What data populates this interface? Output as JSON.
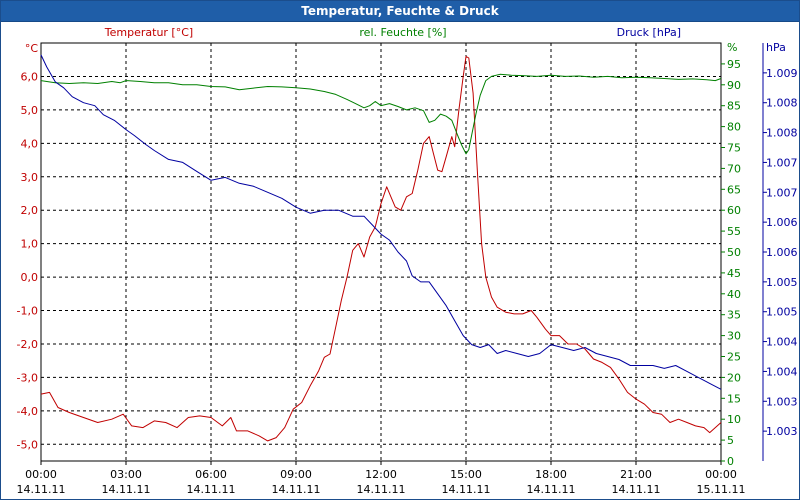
{
  "window": {
    "title": "Temperatur, Feuchte & Druck"
  },
  "colors": {
    "temperature": "#c00000",
    "humidity": "#008000",
    "pressure": "#0000a0",
    "grid": "#000000"
  },
  "chart_data": {
    "type": "line",
    "title": "Temperatur, Feuchte & Druck",
    "grid": true,
    "x_range": [
      0,
      24
    ],
    "x_ticks": [
      {
        "v": 0,
        "time": "00:00",
        "date": "14.11.11"
      },
      {
        "v": 3,
        "time": "03:00",
        "date": "14.11.11"
      },
      {
        "v": 6,
        "time": "06:00",
        "date": "14.11.11"
      },
      {
        "v": 9,
        "time": "09:00",
        "date": "14.11.11"
      },
      {
        "v": 12,
        "time": "12:00",
        "date": "14.11.11"
      },
      {
        "v": 15,
        "time": "15:00",
        "date": "14.11.11"
      },
      {
        "v": 18,
        "time": "18:00",
        "date": "14.11.11"
      },
      {
        "v": 21,
        "time": "21:00",
        "date": "14.11.11"
      },
      {
        "v": 24,
        "time": "00:00",
        "date": "15.11.11"
      }
    ],
    "axes": {
      "temperature": {
        "label": "Temperatur [°C]",
        "unit": "°C",
        "range": [
          -5.5,
          7.0
        ],
        "ticks": [
          {
            "v": 6,
            "t": "6,0"
          },
          {
            "v": 5,
            "t": "5,0"
          },
          {
            "v": 4,
            "t": "4,0"
          },
          {
            "v": 3,
            "t": "3,0"
          },
          {
            "v": 2,
            "t": "2,0"
          },
          {
            "v": 1,
            "t": "1,0"
          },
          {
            "v": 0,
            "t": "0,0"
          },
          {
            "v": -1,
            "t": "-1,0"
          },
          {
            "v": -2,
            "t": "-2,0"
          },
          {
            "v": -3,
            "t": "-3,0"
          },
          {
            "v": -4,
            "t": "-4,0"
          },
          {
            "v": -5,
            "t": "-5,0"
          }
        ]
      },
      "humidity": {
        "label": "rel. Feuchte [%]",
        "unit": "%",
        "range": [
          0,
          100
        ],
        "ticks": [
          {
            "v": 95,
            "t": "95"
          },
          {
            "v": 90,
            "t": "90"
          },
          {
            "v": 85,
            "t": "85"
          },
          {
            "v": 80,
            "t": "80"
          },
          {
            "v": 75,
            "t": "75"
          },
          {
            "v": 70,
            "t": "70"
          },
          {
            "v": 65,
            "t": "65"
          },
          {
            "v": 60,
            "t": "60"
          },
          {
            "v": 55,
            "t": "55"
          },
          {
            "v": 50,
            "t": "50"
          },
          {
            "v": 45,
            "t": "45"
          },
          {
            "v": 40,
            "t": "40"
          },
          {
            "v": 35,
            "t": "35"
          },
          {
            "v": 30,
            "t": "30"
          },
          {
            "v": 25,
            "t": "25"
          },
          {
            "v": 20,
            "t": "20"
          },
          {
            "v": 15,
            "t": "15"
          },
          {
            "v": 10,
            "t": "10"
          },
          {
            "v": 5,
            "t": "5"
          },
          {
            "v": 0,
            "t": "0"
          }
        ]
      },
      "pressure": {
        "label": "Druck [hPa]",
        "unit": "hPa",
        "range": [
          1002.5,
          1009.5
        ],
        "ticks": [
          {
            "v": 1009,
            "t": "1.009"
          },
          {
            "v": 1008.5,
            "t": "1.008"
          },
          {
            "v": 1008,
            "t": "1.008"
          },
          {
            "v": 1007.5,
            "t": "1.007"
          },
          {
            "v": 1007,
            "t": "1.007"
          },
          {
            "v": 1006.5,
            "t": "1.006"
          },
          {
            "v": 1006,
            "t": "1.006"
          },
          {
            "v": 1005.5,
            "t": "1.005"
          },
          {
            "v": 1005,
            "t": "1.005"
          },
          {
            "v": 1004.5,
            "t": "1.004"
          },
          {
            "v": 1004,
            "t": "1.004"
          },
          {
            "v": 1003.5,
            "t": "1.003"
          },
          {
            "v": 1003,
            "t": "1.003"
          }
        ]
      }
    },
    "series": [
      {
        "name": "Temperatur [°C]",
        "axis": "temperature",
        "points": [
          [
            0,
            -3.5
          ],
          [
            0.3,
            -3.45
          ],
          [
            0.6,
            -3.9
          ],
          [
            1,
            -4.05
          ],
          [
            1.5,
            -4.2
          ],
          [
            2,
            -4.35
          ],
          [
            2.5,
            -4.25
          ],
          [
            2.9,
            -4.1
          ],
          [
            3.2,
            -4.45
          ],
          [
            3.6,
            -4.5
          ],
          [
            4,
            -4.3
          ],
          [
            4.4,
            -4.35
          ],
          [
            4.8,
            -4.5
          ],
          [
            5.2,
            -4.2
          ],
          [
            5.6,
            -4.15
          ],
          [
            6,
            -4.2
          ],
          [
            6.4,
            -4.45
          ],
          [
            6.7,
            -4.2
          ],
          [
            6.9,
            -4.6
          ],
          [
            7.3,
            -4.6
          ],
          [
            7.7,
            -4.75
          ],
          [
            8,
            -4.9
          ],
          [
            8.3,
            -4.8
          ],
          [
            8.6,
            -4.5
          ],
          [
            8.9,
            -3.95
          ],
          [
            9.2,
            -3.75
          ],
          [
            9.5,
            -3.25
          ],
          [
            9.8,
            -2.8
          ],
          [
            10.0,
            -2.4
          ],
          [
            10.2,
            -2.3
          ],
          [
            10.4,
            -1.5
          ],
          [
            10.6,
            -0.7
          ],
          [
            10.8,
            0.0
          ],
          [
            11.0,
            0.8
          ],
          [
            11.2,
            1.0
          ],
          [
            11.4,
            0.6
          ],
          [
            11.6,
            1.2
          ],
          [
            11.8,
            1.5
          ],
          [
            12.0,
            2.2
          ],
          [
            12.2,
            2.7
          ],
          [
            12.35,
            2.4
          ],
          [
            12.5,
            2.1
          ],
          [
            12.7,
            2.0
          ],
          [
            12.9,
            2.4
          ],
          [
            13.1,
            2.5
          ],
          [
            13.3,
            3.2
          ],
          [
            13.5,
            4.0
          ],
          [
            13.7,
            4.2
          ],
          [
            13.85,
            3.7
          ],
          [
            14.0,
            3.2
          ],
          [
            14.15,
            3.15
          ],
          [
            14.3,
            3.6
          ],
          [
            14.5,
            4.2
          ],
          [
            14.6,
            3.9
          ],
          [
            14.75,
            5.0
          ],
          [
            14.9,
            6.0
          ],
          [
            15.0,
            6.6
          ],
          [
            15.1,
            6.55
          ],
          [
            15.25,
            5.5
          ],
          [
            15.4,
            3.2
          ],
          [
            15.55,
            1.0
          ],
          [
            15.7,
            0.0
          ],
          [
            15.9,
            -0.6
          ],
          [
            16.1,
            -0.9
          ],
          [
            16.4,
            -1.05
          ],
          [
            16.7,
            -1.1
          ],
          [
            17.0,
            -1.1
          ],
          [
            17.3,
            -1.0
          ],
          [
            17.5,
            -1.2
          ],
          [
            17.8,
            -1.55
          ],
          [
            18.0,
            -1.75
          ],
          [
            18.3,
            -1.75
          ],
          [
            18.6,
            -2.0
          ],
          [
            18.9,
            -2.0
          ],
          [
            19.2,
            -2.15
          ],
          [
            19.5,
            -2.45
          ],
          [
            19.8,
            -2.55
          ],
          [
            20.1,
            -2.7
          ],
          [
            20.4,
            -3.05
          ],
          [
            20.7,
            -3.45
          ],
          [
            21.0,
            -3.65
          ],
          [
            21.3,
            -3.8
          ],
          [
            21.6,
            -4.05
          ],
          [
            21.9,
            -4.1
          ],
          [
            22.2,
            -4.35
          ],
          [
            22.5,
            -4.25
          ],
          [
            22.8,
            -4.35
          ],
          [
            23.1,
            -4.45
          ],
          [
            23.4,
            -4.5
          ],
          [
            23.6,
            -4.65
          ],
          [
            23.8,
            -4.5
          ],
          [
            24.0,
            -4.35
          ]
        ]
      },
      {
        "name": "rel. Feuchte [%]",
        "axis": "humidity",
        "points": [
          [
            0,
            91
          ],
          [
            0.5,
            90.5
          ],
          [
            1,
            90.3
          ],
          [
            1.5,
            90.5
          ],
          [
            2,
            90.3
          ],
          [
            2.5,
            90.8
          ],
          [
            2.8,
            90.5
          ],
          [
            3,
            91
          ],
          [
            3.5,
            90.8
          ],
          [
            4,
            90.5
          ],
          [
            4.5,
            90.5
          ],
          [
            5,
            90
          ],
          [
            5.5,
            90
          ],
          [
            6,
            89.6
          ],
          [
            6.5,
            89.5
          ],
          [
            7,
            88.8
          ],
          [
            7.5,
            89.2
          ],
          [
            8,
            89.6
          ],
          [
            8.5,
            89.5
          ],
          [
            9,
            89.3
          ],
          [
            9.5,
            89.0
          ],
          [
            10,
            88.4
          ],
          [
            10.4,
            87.7
          ],
          [
            10.8,
            86.5
          ],
          [
            11.1,
            85.5
          ],
          [
            11.4,
            84.5
          ],
          [
            11.6,
            85.0
          ],
          [
            11.8,
            86.0
          ],
          [
            12.0,
            85.0
          ],
          [
            12.3,
            85.5
          ],
          [
            12.6,
            84.8
          ],
          [
            12.9,
            84.0
          ],
          [
            13.2,
            84.5
          ],
          [
            13.5,
            83.8
          ],
          [
            13.7,
            81.0
          ],
          [
            13.9,
            81.5
          ],
          [
            14.1,
            83.0
          ],
          [
            14.3,
            82.5
          ],
          [
            14.5,
            81.5
          ],
          [
            14.7,
            78.0
          ],
          [
            14.85,
            75.5
          ],
          [
            15.0,
            73.5
          ],
          [
            15.1,
            74.5
          ],
          [
            15.2,
            78.0
          ],
          [
            15.35,
            83.0
          ],
          [
            15.5,
            87.5
          ],
          [
            15.7,
            91.0
          ],
          [
            15.9,
            92.0
          ],
          [
            16.2,
            92.5
          ],
          [
            16.6,
            92.3
          ],
          [
            17,
            92.2
          ],
          [
            17.5,
            92.0
          ],
          [
            18,
            92.3
          ],
          [
            18.5,
            92.0
          ],
          [
            19,
            92.1
          ],
          [
            19.5,
            91.8
          ],
          [
            20,
            92.0
          ],
          [
            20.5,
            91.7
          ],
          [
            21,
            91.8
          ],
          [
            21.5,
            91.7
          ],
          [
            22,
            91.5
          ],
          [
            22.5,
            91.3
          ],
          [
            23,
            91.4
          ],
          [
            23.5,
            91.2
          ],
          [
            23.8,
            91.0
          ],
          [
            24,
            91.5
          ]
        ]
      },
      {
        "name": "Druck [hPa]",
        "axis": "pressure",
        "points": [
          [
            0,
            1009.3
          ],
          [
            0.2,
            1009.1
          ],
          [
            0.5,
            1008.85
          ],
          [
            0.8,
            1008.75
          ],
          [
            1.1,
            1008.6
          ],
          [
            1.5,
            1008.5
          ],
          [
            1.9,
            1008.45
          ],
          [
            2.2,
            1008.3
          ],
          [
            2.6,
            1008.2
          ],
          [
            3.0,
            1008.05
          ],
          [
            3.3,
            1007.95
          ],
          [
            3.7,
            1007.8
          ],
          [
            4.0,
            1007.7
          ],
          [
            4.5,
            1007.55
          ],
          [
            5.0,
            1007.5
          ],
          [
            5.5,
            1007.35
          ],
          [
            6.0,
            1007.2
          ],
          [
            6.5,
            1007.25
          ],
          [
            7.0,
            1007.15
          ],
          [
            7.5,
            1007.1
          ],
          [
            8.0,
            1007.0
          ],
          [
            8.5,
            1006.9
          ],
          [
            9.0,
            1006.75
          ],
          [
            9.5,
            1006.65
          ],
          [
            10.0,
            1006.7
          ],
          [
            10.5,
            1006.7
          ],
          [
            11.0,
            1006.6
          ],
          [
            11.4,
            1006.6
          ],
          [
            11.7,
            1006.45
          ],
          [
            12.0,
            1006.3
          ],
          [
            12.3,
            1006.2
          ],
          [
            12.6,
            1006.0
          ],
          [
            12.9,
            1005.85
          ],
          [
            13.1,
            1005.6
          ],
          [
            13.4,
            1005.5
          ],
          [
            13.7,
            1005.5
          ],
          [
            14.0,
            1005.3
          ],
          [
            14.3,
            1005.1
          ],
          [
            14.6,
            1004.85
          ],
          [
            14.9,
            1004.6
          ],
          [
            15.2,
            1004.45
          ],
          [
            15.5,
            1004.4
          ],
          [
            15.8,
            1004.45
          ],
          [
            16.1,
            1004.3
          ],
          [
            16.4,
            1004.35
          ],
          [
            16.8,
            1004.3
          ],
          [
            17.2,
            1004.25
          ],
          [
            17.6,
            1004.3
          ],
          [
            18.0,
            1004.45
          ],
          [
            18.4,
            1004.4
          ],
          [
            18.8,
            1004.35
          ],
          [
            19.2,
            1004.4
          ],
          [
            19.6,
            1004.3
          ],
          [
            20.0,
            1004.25
          ],
          [
            20.4,
            1004.2
          ],
          [
            20.8,
            1004.1
          ],
          [
            21.2,
            1004.1
          ],
          [
            21.6,
            1004.1
          ],
          [
            22.0,
            1004.05
          ],
          [
            22.4,
            1004.1
          ],
          [
            22.8,
            1004.0
          ],
          [
            23.2,
            1003.9
          ],
          [
            23.6,
            1003.8
          ],
          [
            24.0,
            1003.7
          ]
        ]
      }
    ]
  }
}
